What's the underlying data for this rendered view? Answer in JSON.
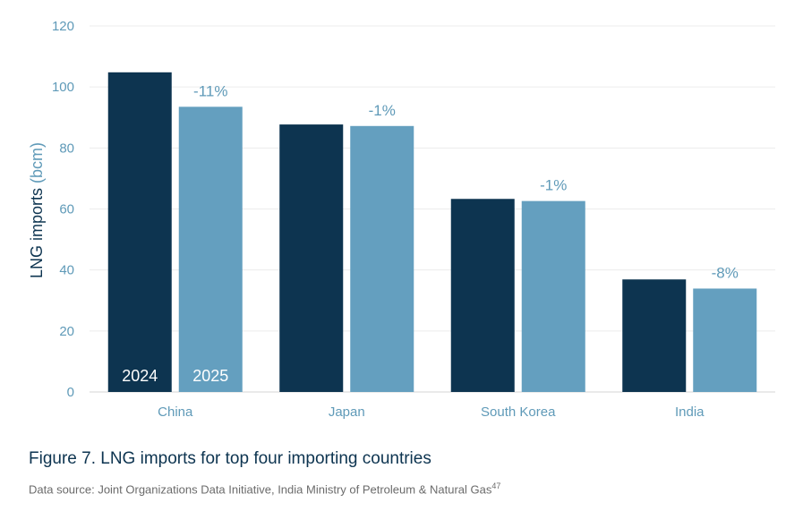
{
  "chart_data": {
    "type": "bar",
    "categories": [
      "China",
      "Japan",
      "South Korea",
      "India"
    ],
    "series": [
      {
        "name": "2024",
        "values": [
          104.8,
          87.7,
          63.3,
          36.9
        ],
        "color": "#0d3450"
      },
      {
        "name": "2025",
        "values": [
          93.5,
          87.2,
          62.6,
          33.9
        ],
        "color": "#649fbf"
      }
    ],
    "data_labels": [
      "-11%",
      "-1%",
      "-1%",
      "-8%"
    ],
    "ylabel": "LNG imports",
    "ylabel_unit": "(bcm)",
    "ylim": [
      0,
      120
    ],
    "yticks": [
      0,
      20,
      40,
      60,
      80,
      100,
      120
    ],
    "grid": true,
    "legend": "inside-first-bars"
  },
  "caption": "Figure 7. LNG imports for top four importing countries",
  "source": {
    "text": "Data source: Joint Organizations Data Initiative, India Ministry of Petroleum & Natural Gas",
    "footnote": "47"
  }
}
